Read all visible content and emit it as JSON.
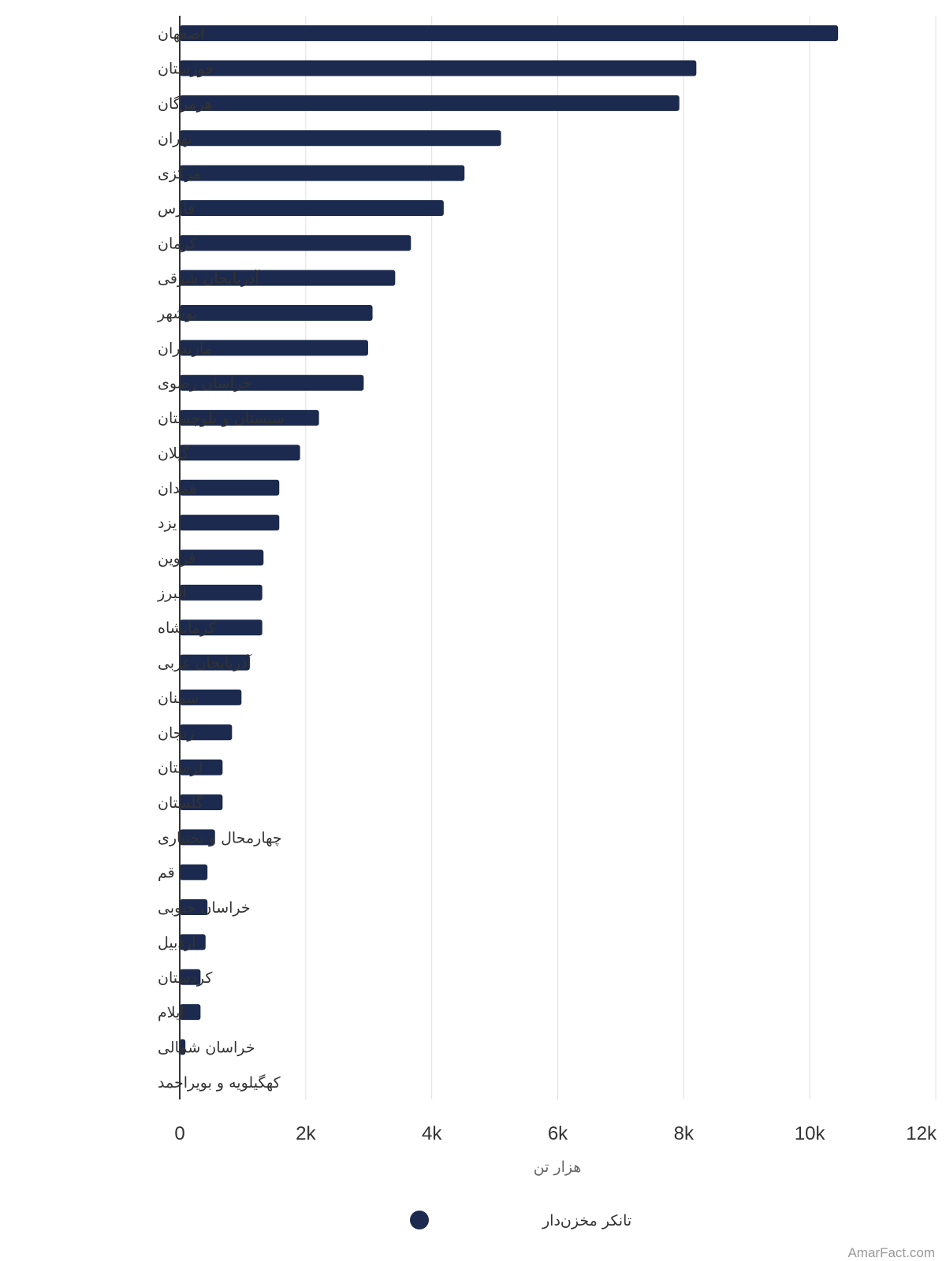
{
  "chart_data": {
    "type": "bar",
    "orientation": "horizontal",
    "categories": [
      "اصفهان",
      "خوزستان",
      "هرمزگان",
      "تهران",
      "مرکزی",
      "فارس",
      "کرمان",
      "آذربایجان شرقی",
      "بوشهر",
      "مازندران",
      "خراسان رضوی",
      "سیستان و بلوچستان",
      "گیلان",
      "همدان",
      "یزد",
      "قزوین",
      "البرز",
      "کرمانشاه",
      "آذربایجان غربی",
      "سمنان",
      "زنجان",
      "لرستان",
      "گلستان",
      "چهارمحال و بختیاری",
      "قم",
      "خراسان جنوبی",
      "اردبیل",
      "کردستان",
      "ایلام",
      "خراسان شمالی",
      "کهگیلویه و بویراحمد"
    ],
    "series": [
      {
        "name": "تانکر مخزن‌دار",
        "values": [
          10450,
          8200,
          7930,
          5100,
          4520,
          4190,
          3670,
          3420,
          3060,
          2990,
          2920,
          2210,
          1910,
          1580,
          1580,
          1330,
          1310,
          1310,
          1110,
          980,
          830,
          680,
          680,
          560,
          440,
          440,
          410,
          330,
          330,
          90,
          0
        ]
      }
    ],
    "xlabel": "هزار تن",
    "xlim": [
      0,
      12000
    ],
    "xticks": [
      "0",
      "2k",
      "4k",
      "6k",
      "8k",
      "10k",
      "12k"
    ],
    "grid": true,
    "legend_position": "bottom-center",
    "credit": "AmarFact.com",
    "colors": {
      "bar": "#1b2a4e",
      "grid": "#e0e0e0",
      "axis": "#333333"
    }
  }
}
